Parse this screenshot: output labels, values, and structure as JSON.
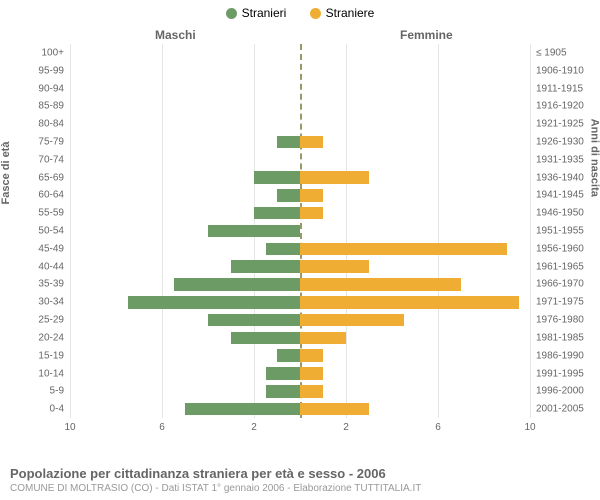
{
  "legend": {
    "male": {
      "label": "Stranieri",
      "color": "#6d9b66"
    },
    "female": {
      "label": "Straniere",
      "color": "#f0ad33"
    }
  },
  "headers": {
    "male": "Maschi",
    "female": "Femmine"
  },
  "axis_titles": {
    "left": "Fasce di età",
    "right": "Anni di nascita"
  },
  "footer": {
    "title": "Popolazione per cittadinanza straniera per età e sesso - 2006",
    "subtitle": "COMUNE DI MOLTRASIO (CO) - Dati ISTAT 1° gennaio 2006 - Elaborazione TUTTITALIA.IT"
  },
  "chart": {
    "xmax": 10,
    "xticks_left": [
      10,
      6,
      2
    ],
    "xticks_right": [
      2,
      6,
      10
    ],
    "grid_color": "#e6e6e6",
    "center_color": "#999966",
    "categories": [
      {
        "age": "100+",
        "year": "≤ 1905",
        "m": 0,
        "f": 0
      },
      {
        "age": "95-99",
        "year": "1906-1910",
        "m": 0,
        "f": 0
      },
      {
        "age": "90-94",
        "year": "1911-1915",
        "m": 0,
        "f": 0
      },
      {
        "age": "85-89",
        "year": "1916-1920",
        "m": 0,
        "f": 0
      },
      {
        "age": "80-84",
        "year": "1921-1925",
        "m": 0,
        "f": 0
      },
      {
        "age": "75-79",
        "year": "1926-1930",
        "m": 1,
        "f": 1
      },
      {
        "age": "70-74",
        "year": "1931-1935",
        "m": 0,
        "f": 0
      },
      {
        "age": "65-69",
        "year": "1936-1940",
        "m": 2,
        "f": 3
      },
      {
        "age": "60-64",
        "year": "1941-1945",
        "m": 1,
        "f": 1
      },
      {
        "age": "55-59",
        "year": "1946-1950",
        "m": 2,
        "f": 1
      },
      {
        "age": "50-54",
        "year": "1951-1955",
        "m": 4,
        "f": 0
      },
      {
        "age": "45-49",
        "year": "1956-1960",
        "m": 1.5,
        "f": 9
      },
      {
        "age": "40-44",
        "year": "1961-1965",
        "m": 3,
        "f": 3
      },
      {
        "age": "35-39",
        "year": "1966-1970",
        "m": 5.5,
        "f": 7
      },
      {
        "age": "30-34",
        "year": "1971-1975",
        "m": 7.5,
        "f": 9.5
      },
      {
        "age": "25-29",
        "year": "1976-1980",
        "m": 4,
        "f": 4.5
      },
      {
        "age": "20-24",
        "year": "1981-1985",
        "m": 3,
        "f": 2
      },
      {
        "age": "15-19",
        "year": "1986-1990",
        "m": 1,
        "f": 1
      },
      {
        "age": "10-14",
        "year": "1991-1995",
        "m": 1.5,
        "f": 1
      },
      {
        "age": "5-9",
        "year": "1996-2000",
        "m": 1.5,
        "f": 1
      },
      {
        "age": "0-4",
        "year": "2001-2005",
        "m": 5,
        "f": 3
      }
    ]
  }
}
